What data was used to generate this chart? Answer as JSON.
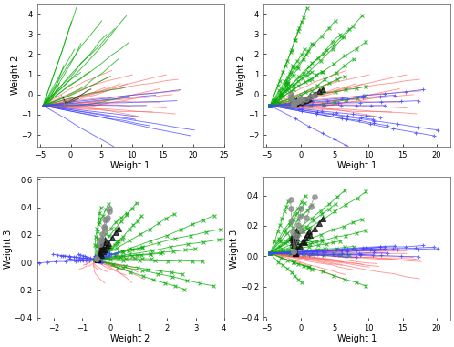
{
  "colors": {
    "biomass": "#ff6060",
    "dust": "#00aa00",
    "weakly": "#4444ff",
    "ice": "#111111",
    "water": "#888888"
  },
  "subplots": [
    {
      "ix": 0,
      "iy": 1,
      "xlim": [
        -5.5,
        25
      ],
      "ylim": [
        -2.6,
        4.5
      ],
      "xlabel": "Weight 1",
      "ylabel": "Weight 2",
      "markers": false
    },
    {
      "ix": 0,
      "iy": 1,
      "xlim": [
        -5.5,
        22
      ],
      "ylim": [
        -2.6,
        4.5
      ],
      "xlabel": "Weight 1",
      "ylabel": "Weight 2",
      "markers": true
    },
    {
      "ix": 1,
      "iy": 2,
      "xlim": [
        -2.6,
        4.0
      ],
      "ylim": [
        -0.42,
        0.62
      ],
      "xlabel": "Weight 2",
      "ylabel": "Weight 3",
      "markers": true
    },
    {
      "ix": 0,
      "iy": 2,
      "xlim": [
        -5.5,
        22
      ],
      "ylim": [
        -0.42,
        0.52
      ],
      "xlabel": "Weight 1",
      "ylabel": "Weight 3",
      "markers": true
    }
  ]
}
